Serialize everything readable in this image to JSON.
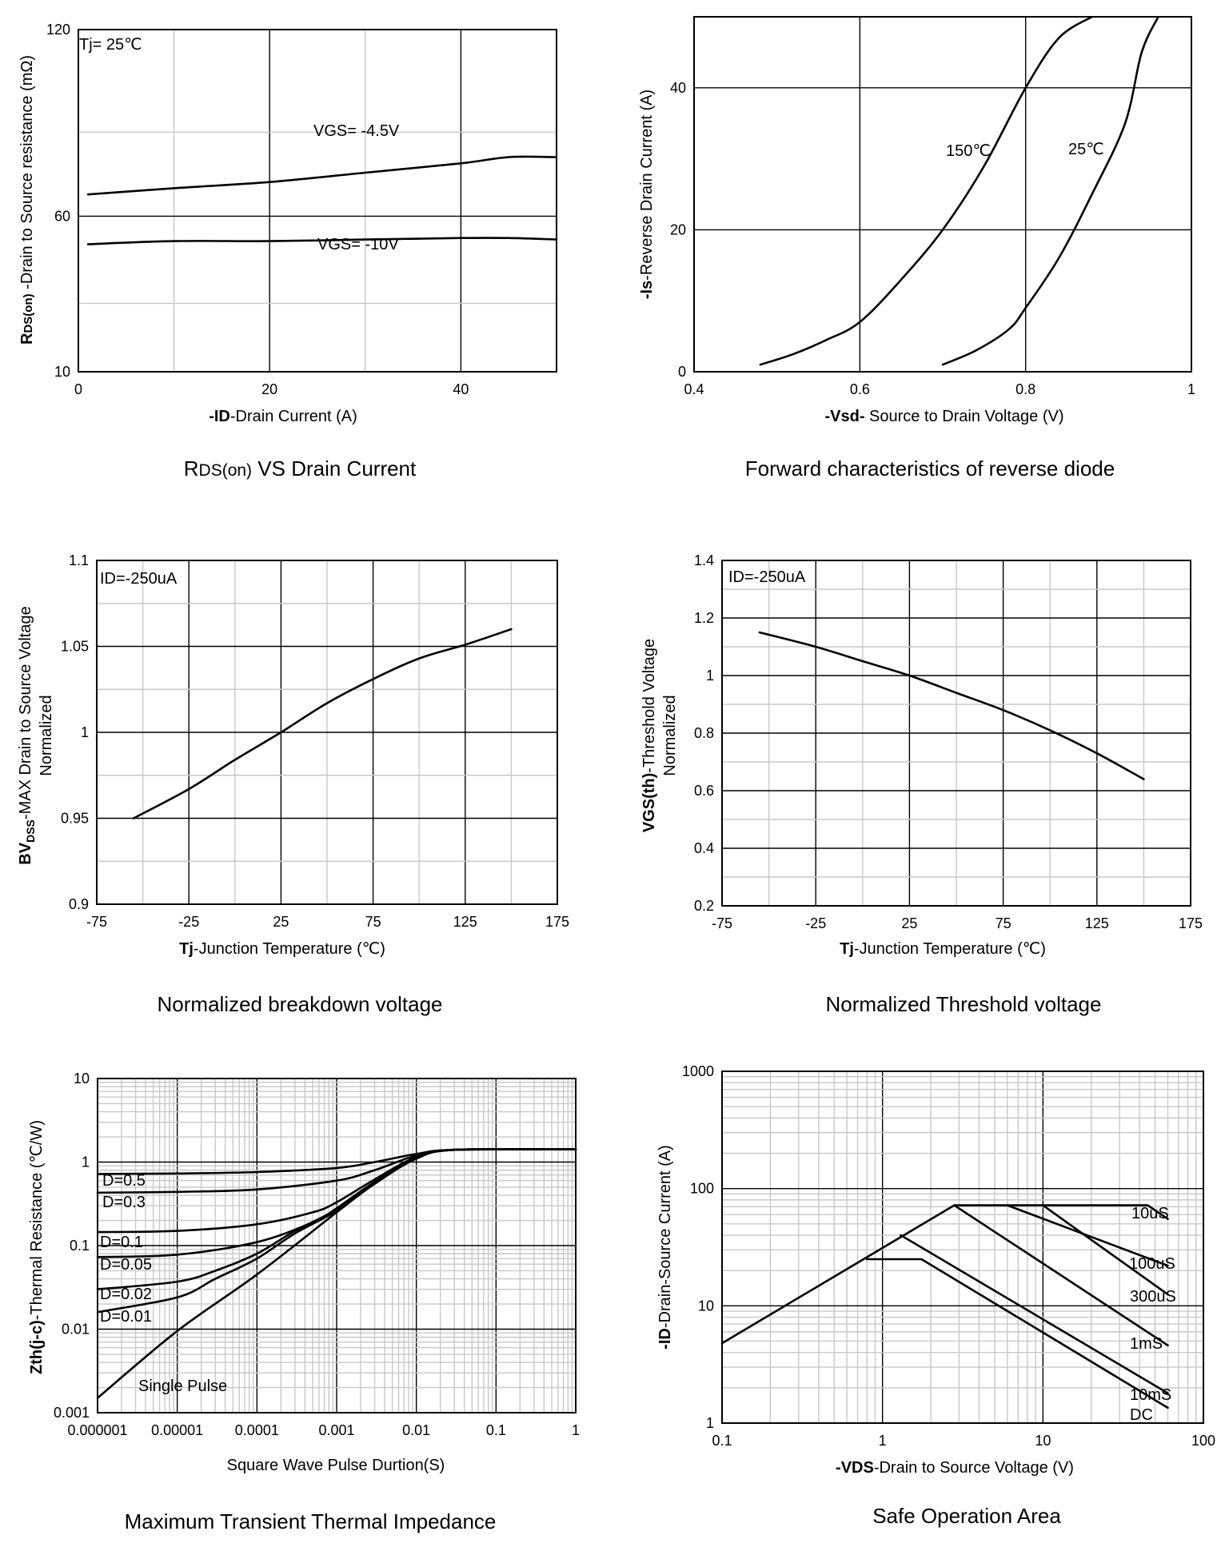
{
  "chart_data": [
    {
      "id": "rds",
      "type": "line",
      "title": "RDS(on) VS Drain Current",
      "caption_prefix": "R",
      "caption_sub": "DS(on)",
      "caption_rest": " VS Drain Current",
      "xlabel_bold": "-ID",
      "xlabel_rest": "-Drain Current (A)",
      "ylabel_bold": "R",
      "ylabel_sub": "DS(on)",
      "ylabel_rest": " -Drain to Source resistance (mΩ)",
      "xlim": [
        0,
        50
      ],
      "ylim": [
        10,
        120
      ],
      "x_ticks": [
        "0",
        "20",
        "40"
      ],
      "y_ticks": [
        "10",
        "60",
        "120"
      ],
      "condition": "Tj= 25℃",
      "series": [
        {
          "name": "VGS= -4.5V",
          "x": [
            1,
            10,
            20,
            30,
            40,
            45,
            50
          ],
          "y": [
            67,
            69,
            71,
            74,
            77,
            79,
            79
          ]
        },
        {
          "name": "VGS= -10V",
          "x": [
            1,
            10,
            20,
            30,
            40,
            45,
            50
          ],
          "y": [
            51,
            52,
            52,
            52.5,
            53,
            53,
            52.5
          ]
        }
      ]
    },
    {
      "id": "diode",
      "type": "line",
      "title": "Forward characteristics of reverse diode",
      "xlabel_bold": "-Vsd-",
      "xlabel_rest": " Source to Drain Voltage (V)",
      "ylabel_bold": "-Is",
      "ylabel_rest": "-Reverse Drain Current (A)",
      "xlim": [
        0.4,
        1.0
      ],
      "ylim": [
        0,
        50
      ],
      "x_ticks": [
        "0.4",
        "0.6",
        "0.8",
        "1"
      ],
      "y_ticks": [
        "0",
        "20",
        "40"
      ],
      "series": [
        {
          "name": "150℃",
          "x": [
            0.48,
            0.52,
            0.56,
            0.6,
            0.65,
            0.7,
            0.75,
            0.8,
            0.84,
            0.88
          ],
          "y": [
            1,
            2.5,
            4.5,
            7,
            13,
            20,
            29,
            40,
            47,
            50
          ]
        },
        {
          "name": "25℃",
          "x": [
            0.7,
            0.74,
            0.78,
            0.8,
            0.84,
            0.88,
            0.92,
            0.94,
            0.96
          ],
          "y": [
            1,
            3,
            6,
            9,
            16,
            25,
            35,
            45,
            50
          ]
        }
      ]
    },
    {
      "id": "bvdss",
      "type": "line",
      "title": "Normalized breakdown voltage",
      "xlabel_bold": "Tj",
      "xlabel_rest": "-Junction Temperature (℃)",
      "ylabel_bold": "BV",
      "ylabel_sub": "DSS",
      "ylabel_rest": "-MAX Drain to Source Voltage",
      "ylabel_line2": "Normalized",
      "xlim": [
        -75,
        175
      ],
      "ylim": [
        0.9,
        1.1
      ],
      "x_ticks": [
        "-75",
        "-25",
        "25",
        "75",
        "125",
        "175"
      ],
      "y_ticks": [
        "0.9",
        "0.95",
        "1",
        "1.05",
        "1.1"
      ],
      "condition": "ID=-250uA",
      "series": [
        {
          "name": "BVDSS",
          "x": [
            -55,
            -25,
            0,
            25,
            50,
            75,
            100,
            125,
            150
          ],
          "y": [
            0.95,
            0.967,
            0.984,
            1.0,
            1.017,
            1.031,
            1.043,
            1.051,
            1.06
          ]
        }
      ]
    },
    {
      "id": "vth",
      "type": "line",
      "title": "Normalized Threshold voltage",
      "xlabel_bold": "Tj",
      "xlabel_rest": "-Junction Temperature (℃)",
      "ylabel_bold": "VGS(th)",
      "ylabel_rest": "-Threshold Voltage",
      "ylabel_line2": "Normalized",
      "xlim": [
        -75,
        175
      ],
      "ylim": [
        0.2,
        1.4
      ],
      "x_ticks": [
        "-75",
        "-25",
        "25",
        "75",
        "125",
        "175"
      ],
      "y_ticks": [
        "0.2",
        "0.4",
        "0.6",
        "0.8",
        "1",
        "1.2",
        "1.4"
      ],
      "condition": "ID=-250uA",
      "series": [
        {
          "name": "VGS(th)",
          "x": [
            -55,
            -25,
            0,
            25,
            50,
            75,
            100,
            125,
            150
          ],
          "y": [
            1.15,
            1.1,
            1.05,
            1.0,
            0.94,
            0.88,
            0.81,
            0.73,
            0.64
          ]
        }
      ]
    },
    {
      "id": "zth",
      "type": "line",
      "title": "Maximum Transient Thermal Impedance",
      "xlabel": "Square Wave Pulse Durtion(S)",
      "ylabel_bold": "Zth(j-c)",
      "ylabel_rest": "-Thermal Resistance (℃/W)",
      "xscale": "log",
      "yscale": "log",
      "xlim": [
        1e-06,
        1
      ],
      "ylim": [
        0.001,
        10
      ],
      "x_ticks": [
        "0.000001",
        "0.00001",
        "0.0001",
        "0.001",
        "0.01",
        "0.1",
        "1"
      ],
      "y_ticks": [
        "0.001",
        "0.01",
        "0.1",
        "1",
        "10"
      ],
      "series": [
        {
          "name": "D=0.5",
          "x": [
            1e-06,
            1e-05,
            0.0001,
            0.001,
            0.003,
            0.01,
            0.03,
            1
          ],
          "y": [
            0.72,
            0.73,
            0.76,
            0.85,
            1.0,
            1.25,
            1.4,
            1.42
          ]
        },
        {
          "name": "D=0.3",
          "x": [
            1e-06,
            1e-05,
            0.0001,
            0.001,
            0.003,
            0.01,
            0.03,
            1
          ],
          "y": [
            0.43,
            0.44,
            0.47,
            0.6,
            0.8,
            1.2,
            1.4,
            1.42
          ]
        },
        {
          "name": "D=0.1",
          "x": [
            1e-06,
            1e-05,
            0.0001,
            0.0005,
            0.001,
            0.003,
            0.01,
            0.03,
            1
          ],
          "y": [
            0.145,
            0.15,
            0.18,
            0.25,
            0.33,
            0.62,
            1.15,
            1.4,
            1.42
          ]
        },
        {
          "name": "D=0.05",
          "x": [
            1e-06,
            1e-05,
            0.0001,
            0.0005,
            0.001,
            0.003,
            0.01,
            0.03,
            1
          ],
          "y": [
            0.073,
            0.078,
            0.11,
            0.19,
            0.28,
            0.58,
            1.12,
            1.4,
            1.42
          ]
        },
        {
          "name": "D=0.02",
          "x": [
            1e-06,
            1e-05,
            3e-05,
            0.0001,
            0.0003,
            0.001,
            0.003,
            0.01,
            0.03,
            1
          ],
          "y": [
            0.03,
            0.037,
            0.05,
            0.08,
            0.15,
            0.27,
            0.56,
            1.1,
            1.4,
            1.42
          ]
        },
        {
          "name": "D=0.01",
          "x": [
            1e-06,
            1e-05,
            3e-05,
            0.0001,
            0.0003,
            0.001,
            0.003,
            0.01,
            0.03,
            1
          ],
          "y": [
            0.016,
            0.024,
            0.04,
            0.07,
            0.14,
            0.26,
            0.55,
            1.1,
            1.4,
            1.42
          ]
        },
        {
          "name": "Single Pulse",
          "x": [
            1e-06,
            1e-05,
            0.0001,
            0.001,
            0.003,
            0.01,
            0.03,
            1
          ],
          "y": [
            0.0015,
            0.0095,
            0.045,
            0.25,
            0.55,
            1.1,
            1.4,
            1.42
          ]
        }
      ]
    },
    {
      "id": "soa",
      "type": "line",
      "title": "Safe Operation Area",
      "xlabel_bold": "-VDS",
      "xlabel_rest": "-Drain to Source Voltage (V)",
      "ylabel_bold": "-ID",
      "ylabel_rest": "-Drain-Source Current (A)",
      "xscale": "log",
      "yscale": "log",
      "xlim": [
        0.1,
        100
      ],
      "ylim": [
        1,
        1000
      ],
      "x_ticks": [
        "0.1",
        "1",
        "10",
        "100"
      ],
      "y_ticks": [
        "1",
        "10",
        "100",
        "1000"
      ],
      "rdson_limit": {
        "x": [
          0.1,
          2.8
        ],
        "y": [
          4.8,
          72
        ]
      },
      "series": [
        {
          "name": "10uS",
          "x": [
            2.8,
            45,
            60,
            60
          ],
          "y": [
            72,
            72,
            55,
            55
          ]
        },
        {
          "name": "100uS",
          "x": [
            6,
            60
          ],
          "y": [
            72,
            22
          ]
        },
        {
          "name": "300uS",
          "x": [
            10,
            60
          ],
          "y": [
            72,
            12.5
          ]
        },
        {
          "name": "1mS",
          "x": [
            2.8,
            60
          ],
          "y": [
            72,
            4.6
          ]
        },
        {
          "name": "10mS",
          "x": [
            1.3,
            60
          ],
          "y": [
            40,
            1.8
          ]
        },
        {
          "name": "DC",
          "x": [
            0.8,
            1.75,
            60
          ],
          "y": [
            25,
            25,
            1.35
          ]
        }
      ]
    }
  ]
}
